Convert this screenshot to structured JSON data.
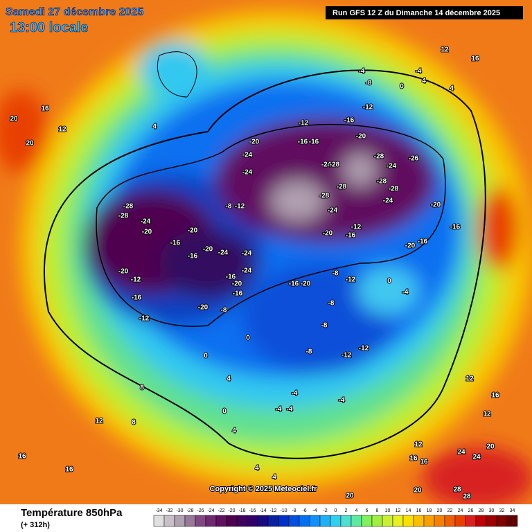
{
  "header": {
    "date": "Samedi 27 décembre 2025",
    "time": "13:00 locale",
    "run": "Run GFS 12 Z du Dimanche 14 décembre 2025"
  },
  "copyright": "Copyright © 2025 Meteociel.fr",
  "legend": {
    "title": "Température 850hPa",
    "lead": "(+ 312h)",
    "ticks": [
      -34,
      -32,
      -30,
      -28,
      -26,
      -24,
      -22,
      -20,
      -18,
      -16,
      -14,
      -12,
      -10,
      -8,
      -6,
      -4,
      -2,
      0,
      2,
      4,
      6,
      8,
      10,
      12,
      14,
      16,
      18,
      20,
      22,
      24,
      26,
      28,
      30,
      32,
      34
    ],
    "colors": [
      "#e0e0e0",
      "#c8c0c8",
      "#b0a0b0",
      "#987898",
      "#804880",
      "#702870",
      "#601060",
      "#500050",
      "#400060",
      "#30006a",
      "#1a0a80",
      "#0a20a0",
      "#0030c8",
      "#0050e0",
      "#0070f0",
      "#1090f8",
      "#20b0f8",
      "#30d0f0",
      "#50e0d0",
      "#60e8a0",
      "#80f060",
      "#a0f040",
      "#c8f030",
      "#e8f020",
      "#f8e000",
      "#f8c000",
      "#f8a000",
      "#f88000",
      "#f06000",
      "#e84000",
      "#d82020",
      "#c00000",
      "#a00000",
      "#800000",
      "#600000"
    ]
  },
  "map_labels": [
    -28,
    -28,
    -24,
    -20,
    -20,
    -12,
    -16,
    -12,
    -20,
    -20,
    -16,
    -16,
    -20,
    -24,
    -24,
    -24,
    -16,
    -20,
    -16,
    -8,
    -20,
    -24,
    -24,
    -12,
    -8,
    -28,
    -24,
    -28,
    -24,
    -28,
    -28,
    -24,
    -28,
    -28,
    -24,
    -26,
    -20,
    -16,
    -20,
    -16,
    -12,
    -16,
    -20,
    -16,
    -20,
    -12,
    -8,
    -8,
    -8,
    -12,
    -12,
    -8,
    0,
    -4,
    -16,
    -20,
    -12,
    -16,
    -16,
    -12,
    -4,
    -8,
    0,
    -4,
    4,
    4,
    16,
    12,
    16,
    20,
    20,
    12,
    4,
    8,
    8,
    12,
    16,
    16,
    0,
    0,
    4,
    0,
    4,
    12,
    12,
    16,
    24,
    20,
    24,
    28,
    28,
    20,
    20,
    16,
    16,
    12,
    4,
    4,
    -4,
    -4,
    -4,
    -4
  ]
}
